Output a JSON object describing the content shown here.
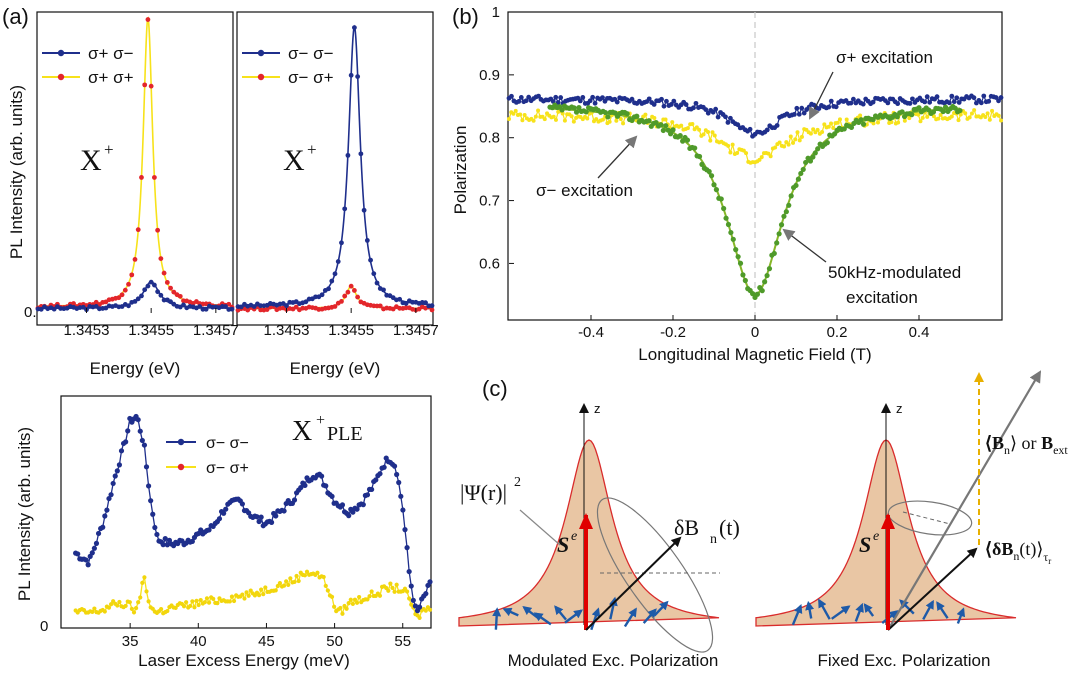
{
  "figure": {
    "panel_labels": {
      "a": "(a)",
      "b": "(b)",
      "c": "(c)"
    }
  },
  "colors": {
    "blue": "#1f2f8c",
    "red": "#e3262b",
    "yellow": "#f7e21b",
    "green": "#4f9a2a",
    "green_line": "#86b627",
    "blob_fill": "#e9c6a4",
    "blob_edge": "#d92c2c",
    "spin_arrow": "#2a62b0"
  },
  "chart_data": [
    {
      "id": "a-left",
      "type": "line",
      "xlabel": "Energy (eV)",
      "ylabel": "PL Intensity (arb. units)",
      "xticks": [
        "1.3453",
        "1.3455",
        "1.3457"
      ],
      "xtick_values": [
        1.3453,
        1.3455,
        1.3457
      ],
      "xlim": [
        1.34515,
        1.34575
      ],
      "yticks": [
        "0."
      ],
      "ylim": [
        0,
        1.0
      ],
      "annotation": "X",
      "annotation_sup": "+",
      "series": [
        {
          "name": "σ+ σ−",
          "color": "#1f2f8c",
          "center": 1.3455,
          "width": 3e-05,
          "peak": 0.09,
          "base": 0.015
        },
        {
          "name": "σ+ σ+",
          "color": "#f7e21b",
          "marker_color": "#e3262b",
          "center": 1.34549,
          "width": 1.8e-05,
          "peak": 0.97,
          "base": 0.02
        }
      ]
    },
    {
      "id": "a-right",
      "type": "line",
      "xlabel": "Energy (eV)",
      "xticks": [
        "1.3453",
        "1.3455",
        "1.3457"
      ],
      "xtick_values": [
        1.3453,
        1.3455,
        1.3457
      ],
      "xlim": [
        1.34515,
        1.34575
      ],
      "ylim": [
        0,
        1.0
      ],
      "annotation": "X",
      "annotation_sup": "+",
      "series": [
        {
          "name": "σ− σ−",
          "color": "#1f2f8c",
          "center": 1.34551,
          "width": 2.2e-05,
          "peak": 0.94,
          "base": 0.02
        },
        {
          "name": "σ− σ+",
          "color": "#f7e21b",
          "marker_color": "#e3262b",
          "center": 1.3455,
          "width": 2e-05,
          "peak": 0.075,
          "base": 0.015
        }
      ]
    },
    {
      "id": "a-bottom",
      "type": "line",
      "xlabel": "Laser Excess Energy (meV)",
      "ylabel": "PL Intensity (arb. units)",
      "xticks": [
        "35",
        "40",
        "45",
        "50",
        "55"
      ],
      "xtick_values": [
        35,
        40,
        45,
        50,
        55
      ],
      "xlim": [
        30,
        57
      ],
      "yticks": [
        "0"
      ],
      "ylim": [
        0,
        1.0
      ],
      "annotation": "X",
      "annotation_sup": "+",
      "annotation_tail": " PLE",
      "series": [
        {
          "name": "σ− σ−",
          "color": "#1f2f8c",
          "x": [
            31,
            32,
            33,
            34,
            34.5,
            35,
            35.5,
            36,
            36.5,
            37,
            38,
            39,
            40,
            41,
            42,
            43,
            44,
            45,
            46,
            47,
            48,
            48.5,
            49,
            50,
            51,
            52,
            53,
            53.5,
            54,
            54.5,
            55,
            55.5,
            56,
            56.5,
            57
          ],
          "y": [
            0.32,
            0.28,
            0.45,
            0.68,
            0.78,
            0.9,
            0.92,
            0.8,
            0.55,
            0.38,
            0.36,
            0.37,
            0.4,
            0.43,
            0.52,
            0.55,
            0.48,
            0.45,
            0.5,
            0.56,
            0.64,
            0.67,
            0.65,
            0.55,
            0.5,
            0.54,
            0.63,
            0.7,
            0.74,
            0.7,
            0.52,
            0.22,
            0.05,
            0.12,
            0.18
          ]
        },
        {
          "name": "σ− σ+",
          "color": "#f7e21b",
          "marker_color": "#e3262b",
          "x": [
            31,
            32,
            33,
            34,
            35,
            35.5,
            36,
            36.3,
            36.8,
            37,
            38,
            40,
            42,
            44,
            46,
            47,
            48,
            49,
            49.5,
            50,
            50.5,
            51,
            52,
            53,
            54,
            55,
            55.5,
            56,
            56.5,
            57
          ],
          "y": [
            0.06,
            0.06,
            0.07,
            0.1,
            0.09,
            0.06,
            0.22,
            0.12,
            0.06,
            0.06,
            0.08,
            0.1,
            0.12,
            0.14,
            0.18,
            0.2,
            0.24,
            0.22,
            0.17,
            0.08,
            0.06,
            0.1,
            0.12,
            0.14,
            0.17,
            0.16,
            0.12,
            0.03,
            0.07,
            0.08
          ]
        }
      ]
    },
    {
      "id": "b",
      "type": "scatter",
      "xlabel": "Longitudinal Magnetic Field (T)",
      "ylabel": "Polarization",
      "xticks": [
        "-0.4",
        "-0.2",
        "0",
        "0.2",
        "0.4"
      ],
      "xtick_values": [
        -0.4,
        -0.2,
        0,
        0.2,
        0.4
      ],
      "xlim": [
        -0.6,
        0.6
      ],
      "yticks": [
        "0.6",
        "0.7",
        "0.8",
        "0.9",
        "1"
      ],
      "ytick_values": [
        0.6,
        0.7,
        0.8,
        0.9,
        1.0
      ],
      "ylim": [
        0.51,
        1.0
      ],
      "series": [
        {
          "name": "σ+ excitation",
          "color": "#1f2f8c",
          "type": "dip",
          "base": 0.862,
          "depth": 0.055,
          "width": 0.08,
          "xrange": [
            -0.6,
            0.6
          ]
        },
        {
          "name": "σ− excitation",
          "color": "#f7e21b",
          "type": "dip",
          "base": 0.838,
          "depth": 0.07,
          "width": 0.11,
          "xrange": [
            -0.6,
            0.6
          ]
        },
        {
          "name": "50kHz-modulated excitation",
          "color": "#4f9a2a",
          "type": "dip",
          "base": 0.855,
          "depth": 0.305,
          "width": 0.085,
          "xrange": [
            -0.5,
            0.5
          ]
        }
      ],
      "annotations": [
        {
          "text": "σ+ excitation"
        },
        {
          "text": "σ− excitation"
        },
        {
          "text_lines": [
            "50kHz-modulated",
            "excitation"
          ]
        }
      ]
    }
  ],
  "panel_c": {
    "left_caption": "Modulated Exc. Polarization",
    "right_caption": "Fixed Exc. Polarization",
    "axis_label": "z",
    "psi_label": "|Ψ(r)|",
    "psi_sup": "2",
    "spin_label": "S",
    "spin_sup": "e",
    "left_field_label": "δB",
    "left_field_sub": "n",
    "left_field_tail": "(t)",
    "right_top_label_1": "⟨B",
    "right_top_label_sub": "n",
    "right_top_label_2": "⟩ or ",
    "right_top_label_3": "B",
    "right_top_label_sub2": "ext",
    "right_avg_label_1": "⟨δB",
    "right_avg_label_sub": "n",
    "right_avg_label_2": "(t)⟩",
    "right_avg_label_sub2": "τ",
    "right_avg_label_sub3": "r"
  }
}
